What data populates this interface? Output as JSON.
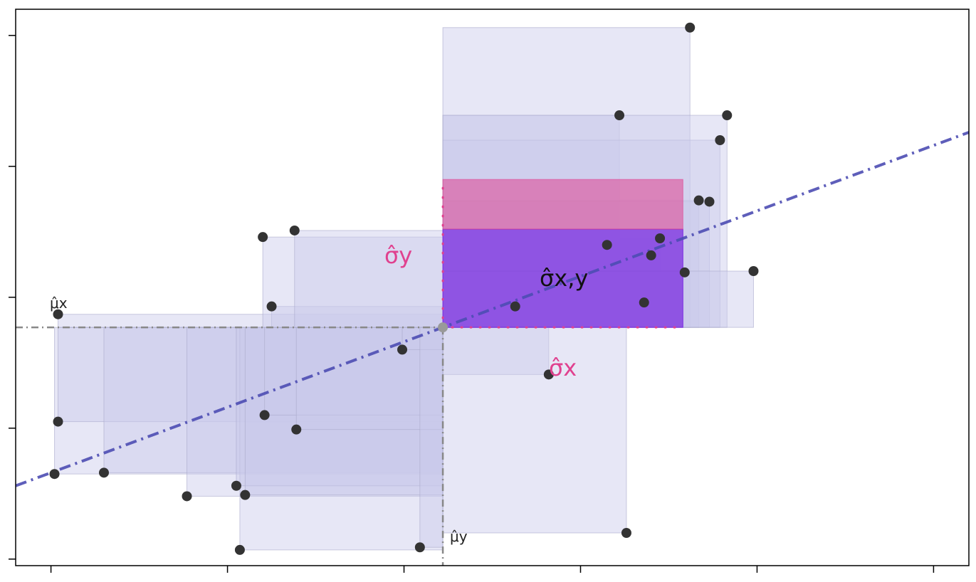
{
  "chart_data": {
    "type": "scatter",
    "title": "",
    "xlabel": "",
    "ylabel": "",
    "xlim": [
      -0.2,
      5.2
    ],
    "ylim": [
      -0.05,
      4.2
    ],
    "xticks": [
      0,
      1,
      2,
      3,
      4,
      5
    ],
    "yticks": [
      0,
      1,
      2,
      3,
      4
    ],
    "tick_labels_shown": false,
    "mean": {
      "x": 2.22,
      "y": 1.77
    },
    "points": [
      {
        "x": 0.02,
        "y": 0.65
      },
      {
        "x": 0.04,
        "y": 1.05
      },
      {
        "x": 0.04,
        "y": 1.87
      },
      {
        "x": 0.3,
        "y": 0.66
      },
      {
        "x": 0.77,
        "y": 0.48
      },
      {
        "x": 1.07,
        "y": 0.07
      },
      {
        "x": 1.05,
        "y": 0.56
      },
      {
        "x": 1.1,
        "y": 0.49
      },
      {
        "x": 1.21,
        "y": 1.1
      },
      {
        "x": 1.25,
        "y": 1.93
      },
      {
        "x": 1.2,
        "y": 2.46
      },
      {
        "x": 1.39,
        "y": 0.99
      },
      {
        "x": 1.38,
        "y": 2.51
      },
      {
        "x": 1.99,
        "y": 1.6
      },
      {
        "x": 2.09,
        "y": 0.09
      },
      {
        "x": 2.63,
        "y": 1.93
      },
      {
        "x": 2.82,
        "y": 1.41
      },
      {
        "x": 3.15,
        "y": 2.4
      },
      {
        "x": 3.22,
        "y": 3.39
      },
      {
        "x": 3.26,
        "y": 0.2
      },
      {
        "x": 3.4,
        "y": 2.32
      },
      {
        "x": 3.36,
        "y": 1.96
      },
      {
        "x": 3.45,
        "y": 2.45
      },
      {
        "x": 3.59,
        "y": 2.19
      },
      {
        "x": 3.62,
        "y": 4.06
      },
      {
        "x": 3.67,
        "y": 2.74
      },
      {
        "x": 3.73,
        "y": 2.73
      },
      {
        "x": 3.79,
        "y": 3.2
      },
      {
        "x": 3.83,
        "y": 3.39
      },
      {
        "x": 3.98,
        "y": 2.2
      }
    ],
    "fit_line": {
      "slope": 0.5,
      "intercept": 0.66
    },
    "mean_labels": {
      "x": "μ̂x",
      "y": "μ̂y"
    },
    "sigma_labels": {
      "x": "σ̂x",
      "y": "σ̂y",
      "xy": "σ̂x,y"
    },
    "sigma_x_box": {
      "x0": 2.22,
      "x1": 3.58,
      "y0": 1.77,
      "y1": 2.52
    },
    "sigma_y_box": {
      "x0": 2.22,
      "x1": 3.58,
      "y0": 2.52,
      "y1": 2.9
    },
    "colors": {
      "square": "#c9c9ea",
      "square_edge": "#aaaacc",
      "fit_line": "#4c4cb2",
      "sigma": "#e0418f",
      "sigma_xy": "#7b2ce0",
      "point": "#333333",
      "mean_point": "#999999"
    }
  }
}
